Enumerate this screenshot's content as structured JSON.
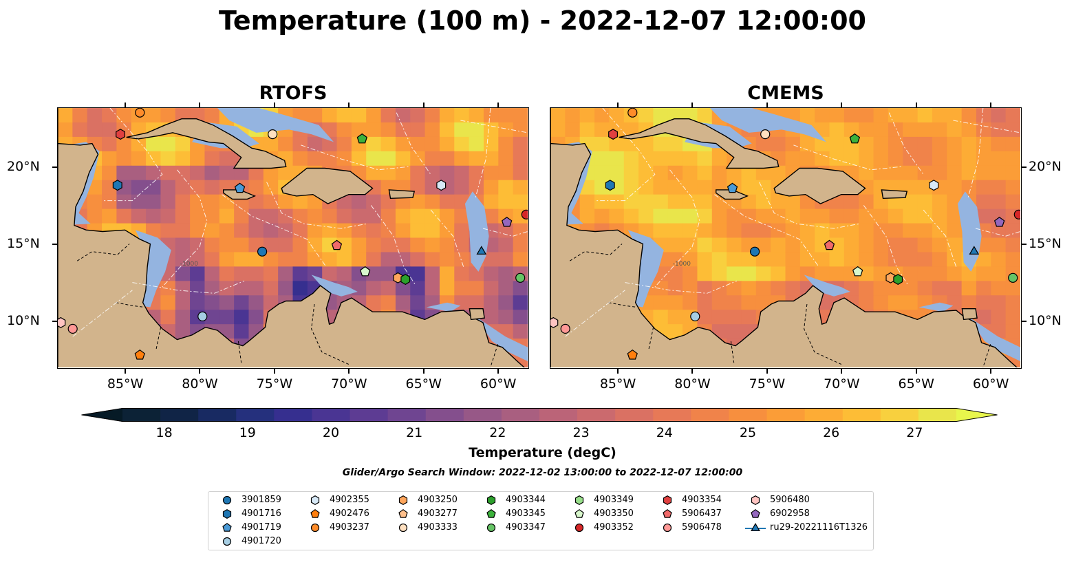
{
  "title": "Temperature (100 m) - 2022-12-07 12:00:00",
  "panels": [
    {
      "title": "RTOFS",
      "palette": "warm"
    },
    {
      "title": "CMEMS",
      "palette": "hot"
    }
  ],
  "map_extent": {
    "lon_min": -89.5,
    "lon_max": -58.0,
    "lat_min": 7.0,
    "lat_max": 23.8
  },
  "lon_ticks": [
    {
      "label": "85°W",
      "lon": -85
    },
    {
      "label": "80°W",
      "lon": -80
    },
    {
      "label": "75°W",
      "lon": -75
    },
    {
      "label": "70°W",
      "lon": -70
    },
    {
      "label": "65°W",
      "lon": -65
    },
    {
      "label": "60°W",
      "lon": -60
    }
  ],
  "lat_ticks": [
    {
      "label": "20°N",
      "lat": 20
    },
    {
      "label": "15°N",
      "lat": 15
    },
    {
      "label": "10°N",
      "lat": 10
    }
  ],
  "contour_label": "-1000",
  "colorbar": {
    "label": "Temperature (degC)",
    "min": 17.5,
    "max": 27.5,
    "ticks": [
      "18",
      "19",
      "20",
      "21",
      "22",
      "23",
      "24",
      "25",
      "26",
      "27"
    ],
    "colors": [
      "#0c2236",
      "#102446",
      "#182a62",
      "#25307d",
      "#362f8f",
      "#4a3593",
      "#5d3c93",
      "#6f4591",
      "#844f8d",
      "#975887",
      "#a95f80",
      "#bb6478",
      "#cb6a6e",
      "#da7163",
      "#e77957",
      "#f0834a",
      "#f78f3e",
      "#fb9d37",
      "#fdac35",
      "#fdbd36",
      "#f8d03e",
      "#e9e54b"
    ],
    "under_color": "#061a26",
    "over_color": "#e8f64c"
  },
  "colors": {
    "land": "#d2b48c",
    "shelf": "#94b4e0",
    "deep": "#04222f",
    "marker_edge": "#000000"
  },
  "search_window": "Glider/Argo Search Window: 2022-12-02 13:00:00 to 2022-12-07 12:00:00",
  "legend": [
    {
      "label": "3901859",
      "shape": "circle",
      "color": "#1f77b4"
    },
    {
      "label": "4901716",
      "shape": "hexagon",
      "color": "#1f77b4"
    },
    {
      "label": "4901719",
      "shape": "pentagon",
      "color": "#4a9ad6"
    },
    {
      "label": "4901720",
      "shape": "circle",
      "color": "#a6cee3"
    },
    {
      "label": "4902355",
      "shape": "hexagon",
      "color": "#d7e9f7"
    },
    {
      "label": "4902476",
      "shape": "pentagon",
      "color": "#ff7f0e"
    },
    {
      "label": "4903237",
      "shape": "circle",
      "color": "#ff8c2a"
    },
    {
      "label": "4903250",
      "shape": "hexagon",
      "color": "#ffa65c"
    },
    {
      "label": "4903277",
      "shape": "pentagon",
      "color": "#ffc08c"
    },
    {
      "label": "4903333",
      "shape": "circle",
      "color": "#ffe0c0"
    },
    {
      "label": "4903344",
      "shape": "hexagon",
      "color": "#2ca02c"
    },
    {
      "label": "4903345",
      "shape": "pentagon",
      "color": "#3cb23c"
    },
    {
      "label": "4903347",
      "shape": "circle",
      "color": "#66c466"
    },
    {
      "label": "4903349",
      "shape": "hexagon",
      "color": "#98df8a"
    },
    {
      "label": "4903350",
      "shape": "pentagon",
      "color": "#d8f7cc"
    },
    {
      "label": "4903352",
      "shape": "circle",
      "color": "#d62728"
    },
    {
      "label": "4903354",
      "shape": "hexagon",
      "color": "#e04040"
    },
    {
      "label": "5906437",
      "shape": "pentagon",
      "color": "#f06a6a"
    },
    {
      "label": "5906478",
      "shape": "circle",
      "color": "#ff9896"
    },
    {
      "label": "5906480",
      "shape": "hexagon",
      "color": "#ffc4c2"
    },
    {
      "label": "6902958",
      "shape": "pentagon",
      "color": "#9467bd"
    },
    {
      "label": "ru29-20221116T1326",
      "shape": "triangle-line",
      "color": "#1f77b4"
    }
  ],
  "platforms": [
    {
      "id": "4903237",
      "lon": -84.0,
      "lat": 23.5
    },
    {
      "id": "4903354",
      "lon": -85.3,
      "lat": 22.1
    },
    {
      "id": "4901716",
      "lon": -85.5,
      "lat": 18.8
    },
    {
      "id": "4901719",
      "lon": -77.3,
      "lat": 18.6
    },
    {
      "id": "4903333",
      "lon": -75.1,
      "lat": 22.1
    },
    {
      "id": "4903345",
      "lon": -69.1,
      "lat": 21.8
    },
    {
      "id": "4902355",
      "lon": -63.8,
      "lat": 18.8
    },
    {
      "id": "6902958",
      "lon": -59.4,
      "lat": 16.4
    },
    {
      "id": "4903352",
      "lon": -58.1,
      "lat": 16.9
    },
    {
      "id": "5906437",
      "lon": -70.8,
      "lat": 14.9
    },
    {
      "id": "3901859",
      "lon": -75.8,
      "lat": 14.5
    },
    {
      "id": "ru29-20221116T1326",
      "lon": -61.1,
      "lat": 14.5
    },
    {
      "id": "4903350",
      "lon": -68.9,
      "lat": 13.2
    },
    {
      "id": "4903250",
      "lon": -66.7,
      "lat": 12.8
    },
    {
      "id": "4903344",
      "lon": -66.2,
      "lat": 12.7
    },
    {
      "id": "4903347",
      "lon": -58.5,
      "lat": 12.8
    },
    {
      "id": "4901720",
      "lon": -79.8,
      "lat": 10.3
    },
    {
      "id": "5906480",
      "lon": -89.3,
      "lat": 9.9
    },
    {
      "id": "5906478",
      "lon": -88.5,
      "lat": 9.5
    },
    {
      "id": "4902476",
      "lon": -84.0,
      "lat": 7.8
    }
  ]
}
